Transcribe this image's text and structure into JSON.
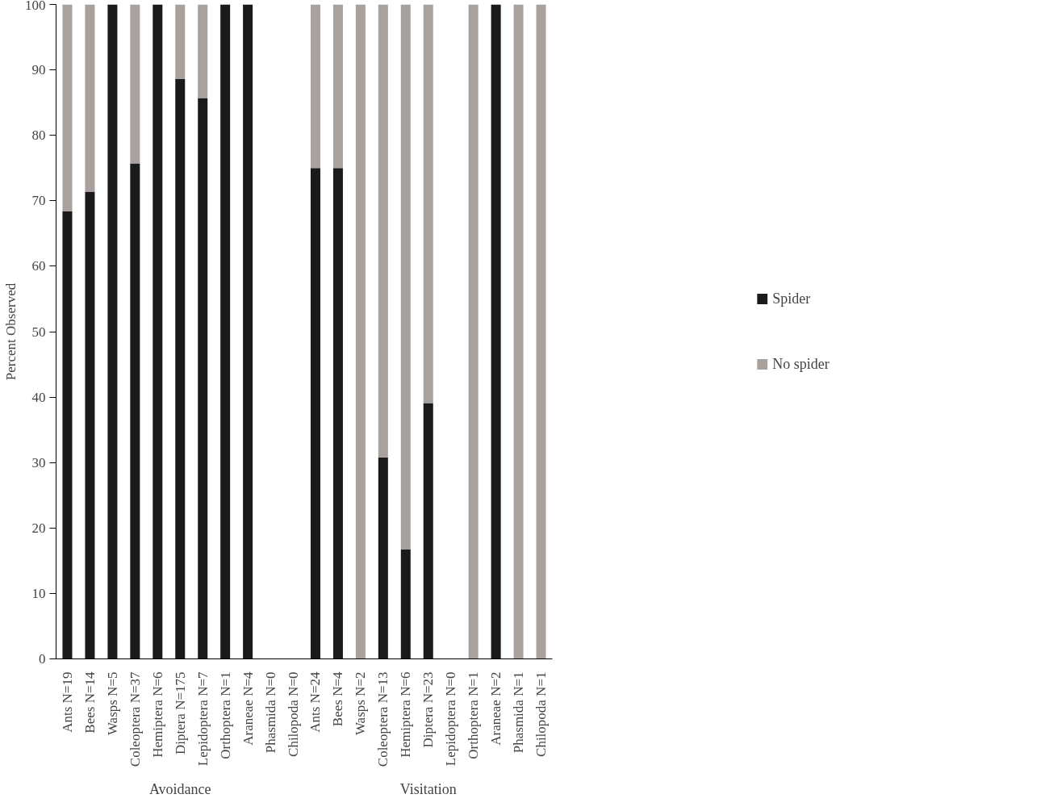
{
  "chart_data": {
    "type": "bar",
    "stacked": true,
    "ylabel": "Percent Observed",
    "categories": [
      "Ants N=19",
      "Bees N=14",
      "Wasps N=5",
      "Coleoptera N=37",
      "Hemiptera N=6",
      "Diptera N=175",
      "Lepidoptera N=7",
      "Orthoptera N=1",
      "Araneae N=4",
      "Phasmida N=0",
      "Chilopoda N=0",
      "Ants N=24",
      "Bees N=4",
      "Wasps N=2",
      "Coleoptera N=13",
      "Hemiptera N=6",
      "Diptera N=23",
      "Lepidoptera N=0",
      "Orthoptera N=1",
      "Araneae N=2",
      "Phasmida N=1",
      "Chilopoda N=1"
    ],
    "series": [
      {
        "name": "Spider",
        "color": "#1a1a1a",
        "values": [
          68.4,
          71.4,
          100,
          75.7,
          100,
          88.6,
          85.7,
          100,
          100,
          null,
          null,
          75,
          75,
          0,
          30.8,
          16.7,
          39.1,
          null,
          0,
          100,
          0,
          0
        ]
      },
      {
        "name": "No spider",
        "color": "#a8a19e",
        "values": [
          31.6,
          28.6,
          0,
          24.3,
          0,
          11.4,
          14.3,
          0,
          0,
          null,
          null,
          25,
          25,
          100,
          69.2,
          83.3,
          60.9,
          null,
          100,
          0,
          100,
          100
        ]
      }
    ],
    "annotations": [
      "Avoidance",
      "Visitation"
    ],
    "ylim": [
      0,
      100
    ],
    "yticks": [
      0,
      10,
      20,
      30,
      40,
      50,
      60,
      70,
      80,
      90,
      100
    ],
    "grid": false,
    "legend": "right"
  }
}
